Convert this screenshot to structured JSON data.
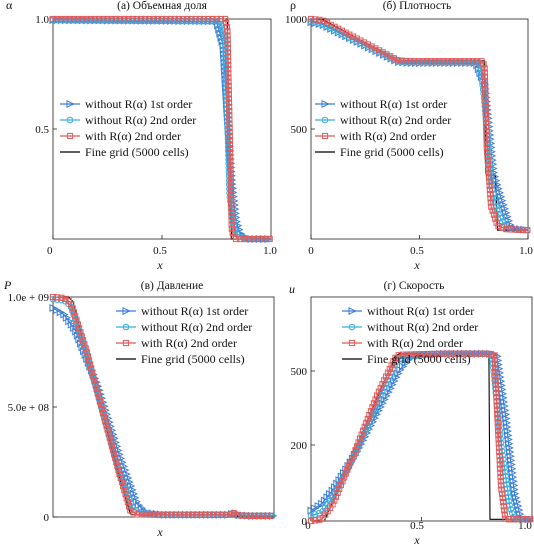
{
  "chart_data": [
    {
      "type": "line",
      "title": "(а) Объемная доля",
      "xlabel": "x",
      "ylabel": "α",
      "xlim": [
        0,
        1.0
      ],
      "ylim": [
        0,
        1.0
      ],
      "xticks": [
        "0",
        "0.5",
        "1.0"
      ],
      "yticks": [
        "0.5",
        "1.0"
      ],
      "legend": [
        "without R(α) 1st order",
        "without R(α) 2nd order",
        "with R(α) 2nd order",
        "Fine grid (5000 cells)"
      ],
      "legend_position": "center-left",
      "series": [
        {
          "name": "without R(α) 1st order",
          "x": [
            0,
            0.75,
            0.78,
            0.8,
            0.82,
            0.84,
            0.86,
            0.9,
            1.0
          ],
          "y": [
            0.995,
            0.99,
            0.88,
            0.55,
            0.25,
            0.08,
            0.02,
            0.0,
            0.0
          ]
        },
        {
          "name": "without R(α) 2nd order",
          "x": [
            0,
            0.77,
            0.79,
            0.8,
            0.81,
            0.83,
            0.85,
            0.9,
            1.0
          ],
          "y": [
            0.995,
            0.99,
            0.9,
            0.55,
            0.2,
            0.05,
            0.01,
            0.0,
            0.0
          ]
        },
        {
          "name": "with R(α) 2nd order",
          "x": [
            0,
            0.79,
            0.8,
            0.81,
            0.82,
            0.83,
            0.9,
            1.0
          ],
          "y": [
            1.0,
            1.0,
            0.95,
            0.5,
            0.05,
            0.0,
            0.0,
            0.0
          ]
        },
        {
          "name": "Fine grid (5000 cells)",
          "x": [
            0,
            0.8,
            0.806,
            0.81,
            0.82,
            1.0
          ],
          "y": [
            1.0,
            1.0,
            0.6,
            0.2,
            0.0,
            0.0
          ]
        }
      ]
    },
    {
      "type": "line",
      "title": "(б) Плотность",
      "xlabel": "x",
      "ylabel": "ρ",
      "xlim": [
        0,
        1.0
      ],
      "ylim": [
        0,
        1000
      ],
      "xticks": [
        "0",
        "0.5",
        "1.0"
      ],
      "yticks": [
        "500",
        "1000"
      ],
      "legend": [
        "without R(α) 1st order",
        "without R(α) 2nd order",
        "with R(α) 2nd order",
        "Fine grid (5000 cells)"
      ],
      "legend_position": "center-left",
      "series": [
        {
          "name": "without R(α) 1st order",
          "x": [
            0,
            0.05,
            0.4,
            0.45,
            0.76,
            0.8,
            0.84,
            0.88,
            0.92,
            1.0
          ],
          "y": [
            985,
            975,
            805,
            800,
            800,
            700,
            300,
            170,
            50,
            40
          ]
        },
        {
          "name": "without R(α) 2nd order",
          "x": [
            0,
            0.05,
            0.4,
            0.45,
            0.78,
            0.8,
            0.83,
            0.86,
            0.9,
            1.0
          ],
          "y": [
            990,
            980,
            808,
            805,
            803,
            620,
            250,
            120,
            45,
            40
          ]
        },
        {
          "name": "with R(α) 2nd order",
          "x": [
            0,
            0.05,
            0.4,
            0.45,
            0.79,
            0.8,
            0.81,
            0.83,
            0.86,
            0.9,
            1.0
          ],
          "y": [
            1000,
            995,
            812,
            808,
            808,
            780,
            420,
            150,
            60,
            45,
            40
          ]
        },
        {
          "name": "Fine grid (5000 cells)",
          "x": [
            0,
            0.05,
            0.4,
            0.45,
            0.8,
            0.805,
            0.81,
            0.85,
            0.86,
            1.0
          ],
          "y": [
            1000,
            1000,
            812,
            810,
            810,
            300,
            290,
            290,
            40,
            40
          ]
        }
      ]
    },
    {
      "type": "line",
      "title": "(в) Давление",
      "xlabel": "x",
      "ylabel": "P",
      "xlim": [
        0,
        1.0
      ],
      "ylim": [
        0,
        1000000000.0
      ],
      "xticks": [],
      "yticks": [
        "0",
        "5.0e + 08",
        "1.0e + 09"
      ],
      "legend": [
        "without R(α) 1st order",
        "without R(α) 2nd order",
        "with R(α) 2nd order",
        "Fine grid (5000 cells)"
      ],
      "legend_position": "upper-right",
      "series": [
        {
          "name": "without R(α) 1st order",
          "x": [
            0,
            0.05,
            0.1,
            0.2,
            0.3,
            0.38,
            0.42,
            0.5,
            0.8,
            0.82,
            0.84,
            0.9,
            1.0
          ],
          "y": [
            950000000,
            920000000,
            850000000,
            600000000,
            280000000,
            60000000,
            20000000,
            10000000,
            10000000,
            20000000,
            8000000,
            5000000,
            5000000
          ]
        },
        {
          "name": "without R(α) 2nd order",
          "x": [
            0,
            0.05,
            0.08,
            0.15,
            0.3,
            0.36,
            0.4,
            0.5,
            0.8,
            0.82,
            0.84,
            0.9,
            1.0
          ],
          "y": [
            990000000,
            985000000,
            960000000,
            750000000,
            200000000,
            40000000,
            15000000,
            10000000,
            10000000,
            18000000,
            8000000,
            5000000,
            5000000
          ]
        },
        {
          "name": "with R(α) 2nd order",
          "x": [
            0,
            0.05,
            0.08,
            0.15,
            0.3,
            0.35,
            0.38,
            0.5,
            0.8,
            0.82,
            0.84,
            0.9,
            1.0
          ],
          "y": [
            1000000000,
            995000000,
            975000000,
            760000000,
            200000000,
            30000000,
            12000000,
            10000000,
            10000000,
            18000000,
            7000000,
            5000000,
            5000000
          ]
        },
        {
          "name": "Fine grid (5000 cells)",
          "x": [
            0,
            0.07,
            0.09,
            0.3,
            0.35,
            0.36,
            0.8,
            0.81,
            1.0
          ],
          "y": [
            1000000000,
            1000000000,
            980000000,
            180000000,
            15000000,
            10000000,
            10000000,
            5000000,
            5000000
          ]
        }
      ]
    },
    {
      "type": "line",
      "title": "(г) Скорость",
      "xlabel": "x",
      "ylabel": "u",
      "xlim": [
        0,
        1.0
      ],
      "ylim": [
        0,
        640
      ],
      "xticks": [
        "0",
        "0.5",
        "1.0"
      ],
      "yticks": [
        "0",
        "200",
        "500"
      ],
      "legend": [
        "without R(α) 1st order",
        "without R(α) 2nd order",
        "with R(α) 2nd order",
        "Fine grid (5000 cells)"
      ],
      "legend_position": "upper-right",
      "series": [
        {
          "name": "without R(α) 1st order",
          "x": [
            0,
            0.05,
            0.1,
            0.2,
            0.3,
            0.4,
            0.45,
            0.6,
            0.8,
            0.84,
            0.88,
            0.92,
            0.95,
            1.0
          ],
          "y": [
            30,
            50,
            90,
            190,
            310,
            430,
            470,
            478,
            478,
            475,
            300,
            80,
            5,
            5
          ]
        },
        {
          "name": "without R(α) 2nd order",
          "x": [
            0,
            0.05,
            0.1,
            0.2,
            0.3,
            0.38,
            0.42,
            0.6,
            0.8,
            0.82,
            0.86,
            0.9,
            0.92,
            1.0
          ],
          "y": [
            15,
            25,
            70,
            190,
            340,
            450,
            472,
            478,
            478,
            470,
            220,
            40,
            5,
            5
          ]
        },
        {
          "name": "with R(α) 2nd order",
          "x": [
            0,
            0.05,
            0.1,
            0.2,
            0.3,
            0.38,
            0.4,
            0.6,
            0.8,
            0.83,
            0.84,
            0.86,
            0.88,
            1.0
          ],
          "y": [
            0,
            5,
            50,
            200,
            360,
            465,
            475,
            478,
            478,
            475,
            340,
            100,
            5,
            5
          ]
        },
        {
          "name": "Fine grid (5000 cells)",
          "x": [
            0,
            0.06,
            0.38,
            0.4,
            0.8,
            0.805,
            0.81,
            1.0
          ],
          "y": [
            0,
            0,
            470,
            478,
            478,
            478,
            5,
            5
          ]
        }
      ]
    }
  ],
  "colors": {
    "first_order": "#3b7ed8",
    "second_order": "#35b1e0",
    "with_R": "#e05a5a",
    "fine_grid": "#000000"
  }
}
